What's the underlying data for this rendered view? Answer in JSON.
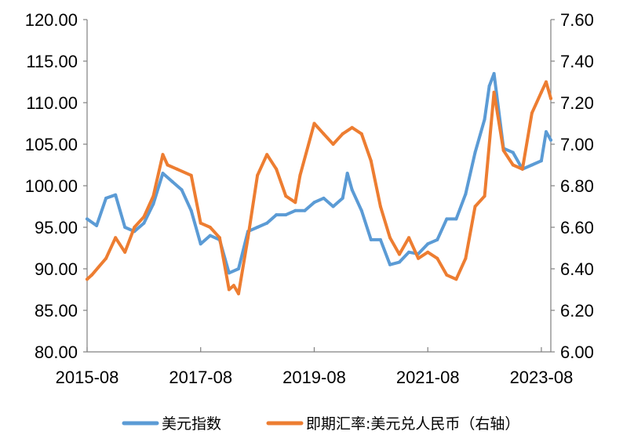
{
  "chart_data": {
    "type": "line",
    "x_ticks": [
      "2015-08",
      "2017-08",
      "2019-08",
      "2021-08",
      "2023-08"
    ],
    "y_left_ticks": [
      "80.00",
      "85.00",
      "90.00",
      "95.00",
      "100.00",
      "105.00",
      "110.00",
      "115.00",
      "120.00"
    ],
    "y_right_ticks": [
      "6.00",
      "6.20",
      "6.40",
      "6.60",
      "6.80",
      "7.00",
      "7.20",
      "7.40",
      "7.60"
    ],
    "ylim_left": [
      80,
      120
    ],
    "ylim_right": [
      6.0,
      7.6
    ],
    "xlim": [
      "2015-08",
      "2023-10"
    ],
    "grid": false,
    "legend_position": "bottom",
    "series": [
      {
        "name": "美元指数",
        "color": "#5b9bd5",
        "axis": "left",
        "x": [
          "2015-08",
          "2015-10",
          "2015-12",
          "2016-02",
          "2016-04",
          "2016-06",
          "2016-08",
          "2016-10",
          "2016-12",
          "2017-02",
          "2017-04",
          "2017-06",
          "2017-08",
          "2017-10",
          "2017-12",
          "2018-02",
          "2018-04",
          "2018-06",
          "2018-08",
          "2018-10",
          "2018-12",
          "2019-02",
          "2019-04",
          "2019-06",
          "2019-08",
          "2019-10",
          "2019-12",
          "2020-02",
          "2020-03",
          "2020-04",
          "2020-06",
          "2020-08",
          "2020-10",
          "2020-12",
          "2021-02",
          "2021-04",
          "2021-06",
          "2021-08",
          "2021-10",
          "2021-12",
          "2022-02",
          "2022-04",
          "2022-06",
          "2022-08",
          "2022-09",
          "2022-10",
          "2022-12",
          "2023-02",
          "2023-04",
          "2023-06",
          "2023-08",
          "2023-09",
          "2023-10"
        ],
        "values": [
          96.0,
          95.2,
          98.5,
          98.9,
          95.0,
          94.5,
          95.5,
          97.8,
          101.5,
          100.5,
          99.5,
          97.0,
          93.0,
          94.0,
          93.5,
          89.5,
          90.0,
          94.5,
          95.0,
          95.5,
          96.5,
          96.5,
          97.0,
          97.0,
          98.0,
          98.5,
          97.5,
          98.5,
          101.5,
          99.5,
          97.0,
          93.5,
          93.5,
          90.5,
          90.8,
          92.0,
          91.8,
          93.0,
          93.5,
          96.0,
          96.0,
          99.0,
          104.0,
          108.0,
          112.0,
          113.5,
          104.5,
          104.0,
          102.0,
          102.5,
          103.0,
          106.5,
          105.5
        ]
      },
      {
        "name": "即期汇率:美元兑人民币（右轴）",
        "color": "#ed7d31",
        "axis": "right",
        "x": [
          "2015-08",
          "2015-09",
          "2015-12",
          "2016-02",
          "2016-04",
          "2016-06",
          "2016-08",
          "2016-10",
          "2016-12",
          "2017-01",
          "2017-03",
          "2017-06",
          "2017-08",
          "2017-10",
          "2017-12",
          "2018-02",
          "2018-03",
          "2018-04",
          "2018-06",
          "2018-08",
          "2018-10",
          "2018-12",
          "2019-02",
          "2019-04",
          "2019-05",
          "2019-08",
          "2019-10",
          "2019-12",
          "2020-02",
          "2020-04",
          "2020-06",
          "2020-08",
          "2020-10",
          "2020-12",
          "2021-02",
          "2021-04",
          "2021-06",
          "2021-08",
          "2021-10",
          "2021-12",
          "2022-02",
          "2022-04",
          "2022-06",
          "2022-08",
          "2022-10",
          "2022-12",
          "2023-02",
          "2023-04",
          "2023-06",
          "2023-08",
          "2023-09",
          "2023-10"
        ],
        "values": [
          6.35,
          6.37,
          6.45,
          6.55,
          6.48,
          6.6,
          6.65,
          6.75,
          6.95,
          6.9,
          6.88,
          6.85,
          6.62,
          6.6,
          6.55,
          6.3,
          6.32,
          6.28,
          6.55,
          6.85,
          6.95,
          6.88,
          6.75,
          6.72,
          6.85,
          7.1,
          7.05,
          7.0,
          7.05,
          7.08,
          7.05,
          6.92,
          6.7,
          6.55,
          6.47,
          6.55,
          6.45,
          6.48,
          6.45,
          6.37,
          6.35,
          6.45,
          6.7,
          6.75,
          7.25,
          6.97,
          6.9,
          6.88,
          7.15,
          7.25,
          7.3,
          7.22
        ]
      }
    ]
  }
}
